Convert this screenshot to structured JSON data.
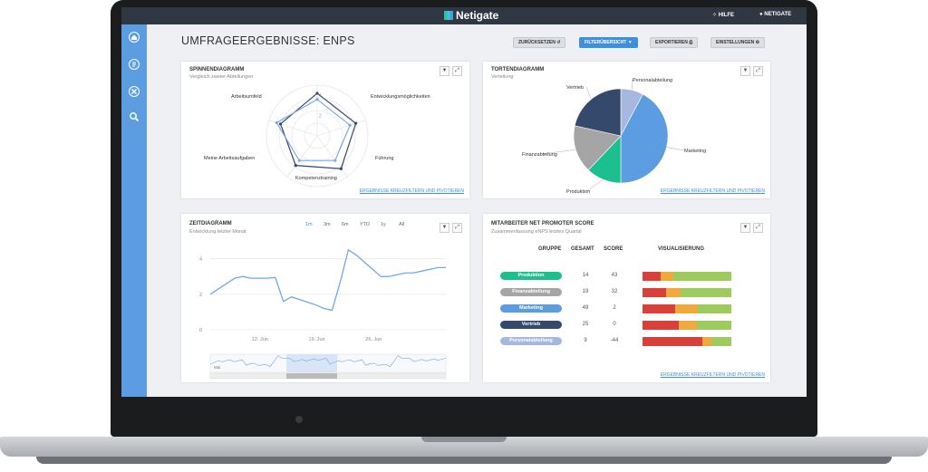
{
  "app": {
    "brand": "Netigate",
    "help": "HILFE",
    "user": "NETIGATE"
  },
  "page": {
    "title": "UMFRAGEERGEBNISSE: ENPS"
  },
  "toolbar": {
    "reset": "ZURÜCKSETZEN",
    "filter": "FILTERÜBERSICHT",
    "export": "EXPORTIEREN",
    "settings": "EINSTELLUNGEN"
  },
  "colors": {
    "accent": "#3d8fe0",
    "sidebar": "#5b9de0",
    "topbar": "#2f3742"
  },
  "cards": {
    "spider": {
      "title": "SPINNENDIAGRAMM",
      "subtitle": "Vergleich zweier Abteilungen",
      "link": "ERGEBNISSE KREUZFILTERN UND PIVOTIEREN",
      "axes": [
        "Arbeitsumfeld",
        "Entwicklungsmöglichkeiten",
        "Führung",
        "Kompetenztraining",
        "Meine Arbeitsaufgaben"
      ],
      "scale_labels": [
        "4",
        "2"
      ]
    },
    "pie": {
      "title": "TORTENDIAGRAMM",
      "subtitle": "Verteilung",
      "link": "ERGEBNISSE KREUZFILTERN UND PIVOTIEREN"
    },
    "time": {
      "title": "ZEITDIAGRAMM",
      "subtitle": "Entwicklung letzter Monat",
      "tabs": [
        "1m",
        "3m",
        "6m",
        "YTD",
        "1y",
        "All"
      ],
      "active_tab": "1m",
      "y_ticks": [
        "4",
        "2",
        "0"
      ],
      "x_ticks": [
        "12. Jun",
        "19. Jun",
        "26. Jun"
      ],
      "nav_label": "Mai"
    },
    "nps": {
      "title": "MITARBEITER NET PROMOTER SCORE",
      "subtitle": "Zusammenfassung eNPS letztes Quartal",
      "headers": {
        "group": "GRUPPE",
        "total": "GESAMT",
        "score": "SCORE",
        "viz": "VISUALISIERUNG"
      },
      "link": "ERGEBNISSE KREUZFILTERN UND PIVOTIEREN",
      "rows": [
        {
          "group": "Produktion",
          "total": "14",
          "score": "43",
          "color": "#1dbf8f",
          "bar": [
            0.2,
            0.15,
            0.65
          ]
        },
        {
          "group": "Finanzabteilung",
          "total": "19",
          "score": "32",
          "color": "#a5a5a5",
          "bar": [
            0.27,
            0.16,
            0.57
          ]
        },
        {
          "group": "Marketing",
          "total": "49",
          "score": "2",
          "color": "#5b9de0",
          "bar": [
            0.37,
            0.25,
            0.38
          ]
        },
        {
          "group": "Vertrieb",
          "total": "25",
          "score": "0",
          "color": "#34496b",
          "bar": [
            0.41,
            0.2,
            0.39
          ]
        },
        {
          "group": "Personalabteilung",
          "total": "9",
          "score": "-44",
          "color": "#a7b8e0",
          "bar": [
            0.67,
            0.11,
            0.22
          ]
        }
      ]
    }
  },
  "chart_data": [
    {
      "type": "radar",
      "categories": [
        "Arbeitsumfeld",
        "Entwicklungsmöglichkeiten",
        "Führung",
        "Kompetenztraining",
        "Meine Arbeitsaufgaben"
      ],
      "series": [
        {
          "values": [
            4.2,
            4.0,
            4.0,
            3.6,
            3.8
          ],
          "color": "#34496b"
        },
        {
          "values": [
            3.6,
            3.4,
            3.0,
            3.0,
            4.2
          ],
          "color": "#7fa8de"
        }
      ],
      "ylim": [
        0,
        5
      ]
    },
    {
      "type": "pie",
      "categories": [
        "Personalabteilung",
        "Marketing",
        "Produktion",
        "Finanzabteilung",
        "Vertrieb"
      ],
      "values": [
        9,
        49,
        14,
        19,
        25
      ],
      "colors": [
        "#a7b8e0",
        "#5b9de0",
        "#1dbf8f",
        "#a5a5a5",
        "#34496b"
      ]
    },
    {
      "type": "line",
      "x": [
        "6. Jun",
        "7. Jun",
        "8. Jun",
        "9. Jun",
        "10. Jun",
        "11. Jun",
        "12. Jun",
        "13. Jun",
        "14. Jun",
        "15. Jun",
        "16. Jun",
        "17. Jun",
        "18. Jun",
        "19. Jun",
        "20. Jun",
        "21. Jun",
        "22. Jun",
        "23. Jun",
        "24. Jun",
        "25. Jun",
        "26. Jun",
        "27. Jun",
        "28. Jun",
        "29. Jun",
        "30. Jun",
        "1. Jul",
        "2. Jul",
        "3. Jul",
        "4. Jul",
        "5. Jul"
      ],
      "values": [
        2.0,
        2.3,
        2.6,
        2.9,
        3.0,
        2.9,
        2.9,
        2.9,
        2.95,
        1.6,
        1.85,
        1.7,
        1.55,
        1.4,
        1.2,
        1.1,
        2.7,
        4.5,
        4.2,
        3.8,
        3.4,
        3.0,
        3.0,
        3.1,
        3.2,
        3.2,
        3.3,
        3.4,
        3.5,
        3.5
      ],
      "ylim": [
        0,
        5
      ],
      "y_ticks": [
        0,
        2,
        4
      ],
      "x_ticks": [
        "12. Jun",
        "19. Jun",
        "26. Jun"
      ]
    }
  ]
}
